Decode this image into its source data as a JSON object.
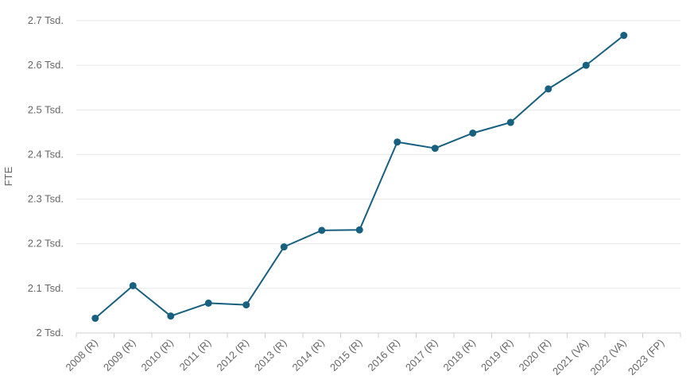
{
  "chart_data": {
    "type": "line",
    "title": "",
    "xlabel": "",
    "ylabel": "FTE",
    "ylim": [
      2000,
      2700
    ],
    "y_ticks": [
      2000,
      2100,
      2200,
      2300,
      2400,
      2500,
      2600,
      2700
    ],
    "y_tick_labels": [
      "2 Tsd.",
      "2.1 Tsd.",
      "2.2 Tsd.",
      "2.3 Tsd.",
      "2.4 Tsd.",
      "2.5 Tsd.",
      "2.6 Tsd.",
      "2.7 Tsd."
    ],
    "categories": [
      "2008 (R)",
      "2009 (R)",
      "2010 (R)",
      "2011 (R)",
      "2012 (R)",
      "2013 (R)",
      "2014 (R)",
      "2015 (R)",
      "2016 (R)",
      "2017 (R)",
      "2018 (R)",
      "2019 (R)",
      "2020 (R)",
      "2021 (VA)",
      "2022 (VA)",
      "2023 (FP)"
    ],
    "series": [
      {
        "values": [
          2033,
          2106,
          2038,
          2067,
          2063,
          2193,
          2230,
          2231,
          2428,
          2414,
          2448,
          2472,
          2547,
          2600,
          2667,
          null
        ]
      }
    ],
    "grid": true,
    "legend": "none",
    "colors": {
      "line": "#17607f",
      "grid": "#e6e6e6",
      "axis": "#cccccc",
      "text": "#666666"
    }
  }
}
